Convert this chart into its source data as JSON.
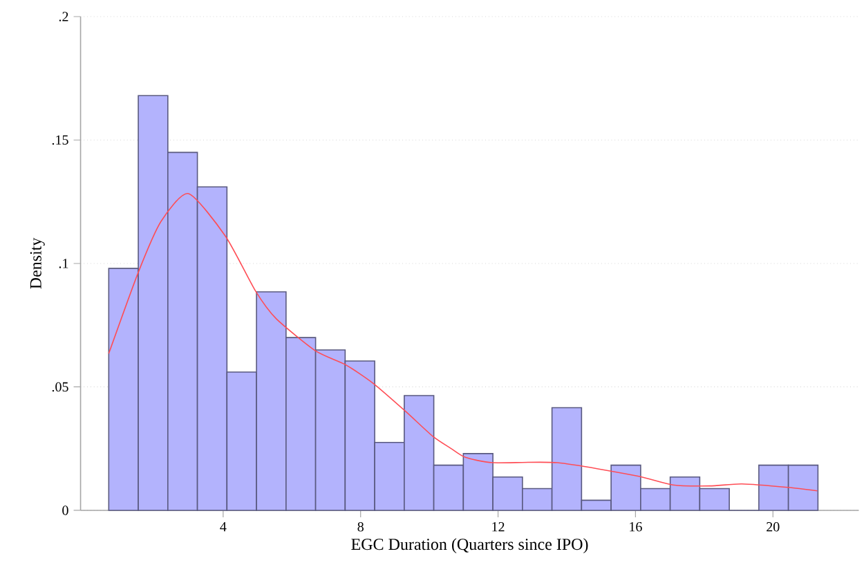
{
  "chart_data": {
    "type": "histogram",
    "xlabel": "EGC Duration (Quarters since IPO)",
    "ylabel": "Density",
    "xlim": [
      -0.15,
      22.5
    ],
    "ylim": [
      0,
      0.2
    ],
    "xticks": [
      4,
      8,
      12,
      16,
      20
    ],
    "yticks": [
      0,
      {
        "value": 0.05,
        "label": ".05"
      },
      {
        "value": 0.1,
        "label": ".1"
      },
      {
        "value": 0.15,
        "label": ".15"
      },
      {
        "value": 0.2,
        "label": ".2"
      }
    ],
    "grid": "y",
    "series": [
      {
        "color": "#b3b3fd",
        "bins": [
          0.67,
          1.53,
          2.39,
          3.25,
          4.11,
          4.97,
          5.83,
          6.69,
          7.55,
          8.41,
          9.27,
          10.13,
          10.99,
          11.85,
          12.71,
          13.57,
          14.43,
          15.29,
          16.15,
          17.01,
          17.87,
          18.73,
          19.59,
          20.45,
          21.31
        ],
        "values": [
          0.098,
          0.168,
          0.145,
          0.131,
          0.056,
          0.0885,
          0.07,
          0.065,
          0.0605,
          0.0275,
          0.0465,
          0.0183,
          0.023,
          0.0135,
          0.0088,
          0.0416,
          0.0041,
          0.0183,
          0.0088,
          0.0135,
          0.0088,
          0,
          0.0183,
          0.0183
        ]
      },
      {
        "type": "line",
        "color": "#ff4d55",
        "x": [
          0.67,
          1.53,
          2.19,
          2.99,
          4.07,
          4.94,
          5.54,
          6.69,
          7.56,
          8.36,
          9.3,
          10.1,
          10.65,
          11.05,
          11.85,
          13.73,
          16.02,
          17.09,
          18.16,
          19.1,
          20.44,
          21.29
        ],
        "values": [
          0.0635,
          0.0964,
          0.117,
          0.1283,
          0.111,
          0.0889,
          0.0777,
          0.0646,
          0.059,
          0.0515,
          0.0402,
          0.03,
          0.0249,
          0.0215,
          0.0193,
          0.0193,
          0.014,
          0.0103,
          0.0099,
          0.0107,
          0.0093,
          0.0079
        ]
      }
    ]
  }
}
